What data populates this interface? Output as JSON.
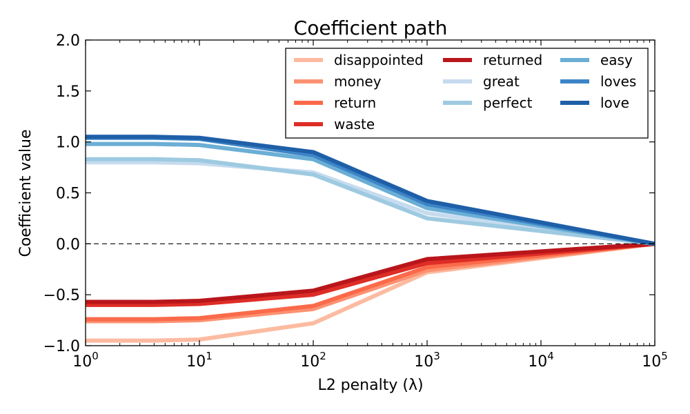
{
  "chart_data": {
    "type": "line",
    "title": "Coefficient path",
    "xlabel": "L2 penalty (λ)",
    "ylabel": "Coefficient value",
    "xscale": "log",
    "xlim": [
      1,
      100000
    ],
    "ylim": [
      -1.0,
      2.0
    ],
    "x": [
      1,
      4,
      10,
      100,
      1000,
      100000
    ],
    "x_ticks": [
      {
        "value": 1,
        "base": "10",
        "exp": "0"
      },
      {
        "value": 10,
        "base": "10",
        "exp": "1"
      },
      {
        "value": 100,
        "base": "10",
        "exp": "2"
      },
      {
        "value": 1000,
        "base": "10",
        "exp": "3"
      },
      {
        "value": 10000,
        "base": "10",
        "exp": "4"
      },
      {
        "value": 100000,
        "base": "10",
        "exp": "5"
      }
    ],
    "y_ticks": [
      {
        "value": -1.0,
        "label": "−1.0"
      },
      {
        "value": -0.5,
        "label": "−0.5"
      },
      {
        "value": 0.0,
        "label": "0.0"
      },
      {
        "value": 0.5,
        "label": "0.5"
      },
      {
        "value": 1.0,
        "label": "1.0"
      },
      {
        "value": 1.5,
        "label": "1.5"
      },
      {
        "value": 2.0,
        "label": "2.0"
      }
    ],
    "reference_line": {
      "y": 0.0,
      "style": "dashed"
    },
    "legend": {
      "position": "top-right",
      "columns": 3
    },
    "series": [
      {
        "name": "disappointed",
        "color": "#fcbba1",
        "values": [
          -0.95,
          -0.95,
          -0.94,
          -0.78,
          -0.28,
          0.0
        ]
      },
      {
        "name": "money",
        "color": "#fc9272",
        "values": [
          -0.76,
          -0.76,
          -0.75,
          -0.64,
          -0.26,
          0.0
        ]
      },
      {
        "name": "return",
        "color": "#fb6a4a",
        "values": [
          -0.74,
          -0.74,
          -0.73,
          -0.61,
          -0.23,
          0.0
        ]
      },
      {
        "name": "waste",
        "color": "#de2d26",
        "values": [
          -0.6,
          -0.6,
          -0.59,
          -0.5,
          -0.19,
          0.0
        ]
      },
      {
        "name": "returned",
        "color": "#b9161b",
        "values": [
          -0.57,
          -0.57,
          -0.56,
          -0.46,
          -0.15,
          0.0
        ]
      },
      {
        "name": "great",
        "color": "#c6dbef",
        "values": [
          0.8,
          0.8,
          0.79,
          0.7,
          0.3,
          0.0
        ]
      },
      {
        "name": "perfect",
        "color": "#9ecae1",
        "values": [
          0.83,
          0.83,
          0.82,
          0.68,
          0.25,
          0.0
        ]
      },
      {
        "name": "easy",
        "color": "#6baed6",
        "values": [
          0.98,
          0.98,
          0.97,
          0.83,
          0.35,
          0.0
        ]
      },
      {
        "name": "loves",
        "color": "#3d85c6",
        "values": [
          1.04,
          1.04,
          1.03,
          0.87,
          0.39,
          0.0
        ]
      },
      {
        "name": "love",
        "color": "#1f5fa8",
        "values": [
          1.05,
          1.05,
          1.04,
          0.9,
          0.42,
          0.0
        ]
      }
    ]
  }
}
